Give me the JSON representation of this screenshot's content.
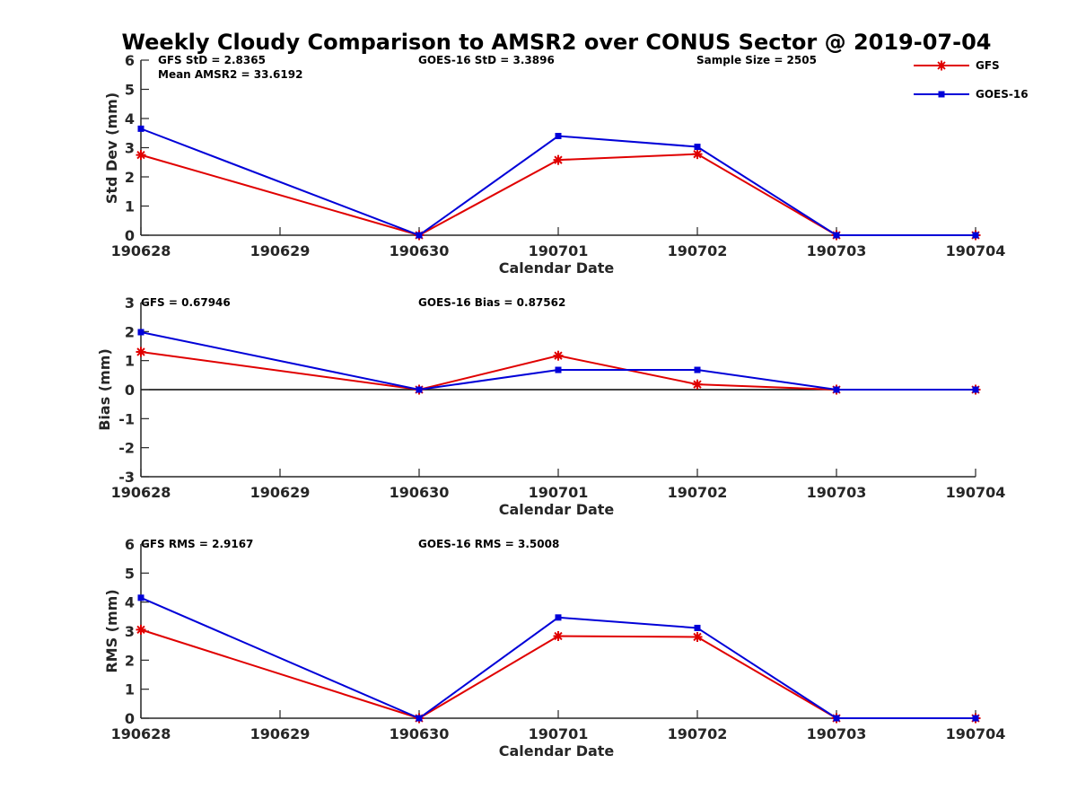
{
  "chart_data": {
    "title": "Weekly Cloudy Comparison to AMSR2 over CONUS Sector @ 2019-07-04",
    "legend": {
      "placement": "top-right",
      "entries": [
        {
          "name": "GFS",
          "color": "#e00000",
          "marker": "asterisk"
        },
        {
          "name": "GOES-16",
          "color": "#0000d8",
          "marker": "square"
        }
      ]
    },
    "panels": [
      {
        "type": "line",
        "xlabel": "Calendar Date",
        "ylabel": "Std Dev (mm)",
        "x_ticks": [
          "190628",
          "190629",
          "190630",
          "190701",
          "190702",
          "190703",
          "190704"
        ],
        "ylim": [
          0,
          6
        ],
        "y_ticks": [
          "0",
          "1",
          "2",
          "3",
          "4",
          "5",
          "6"
        ],
        "zero_line": false,
        "annotations": [
          "GFS StD = 2.8365",
          "Mean AMSR2 = 33.6192",
          "GOES-16 StD = 3.3896",
          "Sample Size = 2505"
        ],
        "series": [
          {
            "name": "GFS",
            "x": [
              "190628",
              "190630",
              "190701",
              "190702",
              "190703",
              "190704"
            ],
            "values": [
              2.75,
              0.0,
              2.58,
              2.78,
              0.0,
              0.0
            ]
          },
          {
            "name": "GOES-16",
            "x": [
              "190628",
              "190630",
              "190701",
              "190702",
              "190703",
              "190704"
            ],
            "values": [
              3.65,
              0.0,
              3.4,
              3.03,
              0.0,
              0.0
            ]
          }
        ]
      },
      {
        "type": "line",
        "xlabel": "Calendar Date",
        "ylabel": "Bias (mm)",
        "x_ticks": [
          "190628",
          "190629",
          "190630",
          "190701",
          "190702",
          "190703",
          "190704"
        ],
        "ylim": [
          -3,
          3
        ],
        "y_ticks": [
          "-3",
          "-2",
          "-1",
          "0",
          "1",
          "2",
          "3"
        ],
        "zero_line": true,
        "annotations": [
          "GFS = 0.67946",
          "GOES-16 Bias  = 0.87562"
        ],
        "series": [
          {
            "name": "GFS",
            "x": [
              "190628",
              "190630",
              "190701",
              "190702",
              "190703",
              "190704"
            ],
            "values": [
              1.3,
              0.0,
              1.17,
              0.18,
              0.0,
              0.0
            ]
          },
          {
            "name": "GOES-16",
            "x": [
              "190628",
              "190630",
              "190701",
              "190702",
              "190703",
              "190704"
            ],
            "values": [
              1.98,
              0.0,
              0.68,
              0.68,
              0.0,
              0.0
            ]
          }
        ]
      },
      {
        "type": "line",
        "xlabel": "Calendar Date",
        "ylabel": "RMS (mm)",
        "x_ticks": [
          "190628",
          "190629",
          "190630",
          "190701",
          "190702",
          "190703",
          "190704"
        ],
        "ylim": [
          0,
          6
        ],
        "y_ticks": [
          "0",
          "1",
          "2",
          "3",
          "4",
          "5",
          "6"
        ],
        "zero_line": false,
        "annotations": [
          "GFS RMS = 2.9167",
          "GOES-16 RMS = 3.5008"
        ],
        "series": [
          {
            "name": "GFS",
            "x": [
              "190628",
              "190630",
              "190701",
              "190702",
              "190703",
              "190704"
            ],
            "values": [
              3.05,
              0.0,
              2.83,
              2.8,
              0.0,
              0.0
            ]
          },
          {
            "name": "GOES-16",
            "x": [
              "190628",
              "190630",
              "190701",
              "190702",
              "190703",
              "190704"
            ],
            "values": [
              4.15,
              0.0,
              3.47,
              3.11,
              0.0,
              0.0
            ]
          }
        ]
      }
    ]
  }
}
